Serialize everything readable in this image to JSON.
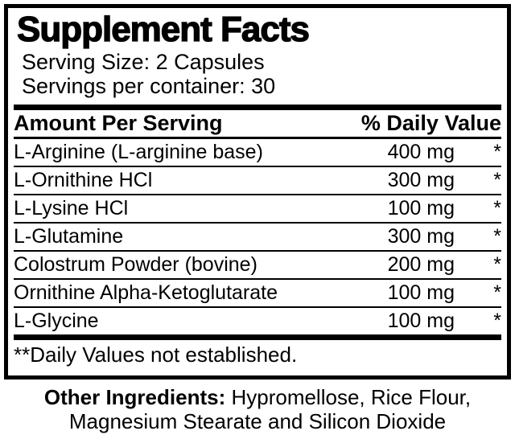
{
  "colors": {
    "text": "#000000",
    "background": "#ffffff",
    "border": "#000000"
  },
  "panel": {
    "title": "Supplement Facts",
    "serving_size": "Serving Size: 2 Capsules",
    "servings_per_container": "Servings per container: 30",
    "columns": {
      "amount_header": "Amount Per Serving",
      "dv_header": "% Daily Value"
    },
    "rows": [
      {
        "name": "L-Arginine (L-arginine base)",
        "amount": "400 mg",
        "daily_value": "*"
      },
      {
        "name": "L-Ornithine HCl",
        "amount": "300 mg",
        "daily_value": "*"
      },
      {
        "name": "L-Lysine HCl",
        "amount": "100 mg",
        "daily_value": "*"
      },
      {
        "name": "L-Glutamine",
        "amount": "300 mg",
        "daily_value": "*"
      },
      {
        "name": "Colostrum Powder (bovine)",
        "amount": "200 mg",
        "daily_value": "*"
      },
      {
        "name": "Ornithine Alpha-Ketoglutarate",
        "amount": "100 mg",
        "daily_value": "*"
      },
      {
        "name": "L-Glycine",
        "amount": "100 mg",
        "daily_value": "*"
      }
    ],
    "footnote": "**Daily Values not established."
  },
  "other_ingredients": {
    "label": "Other Ingredients:",
    "line1_rest": " Hypromellose, Rice Flour,",
    "line2": "Magnesium Stearate and Silicon Dioxide"
  }
}
